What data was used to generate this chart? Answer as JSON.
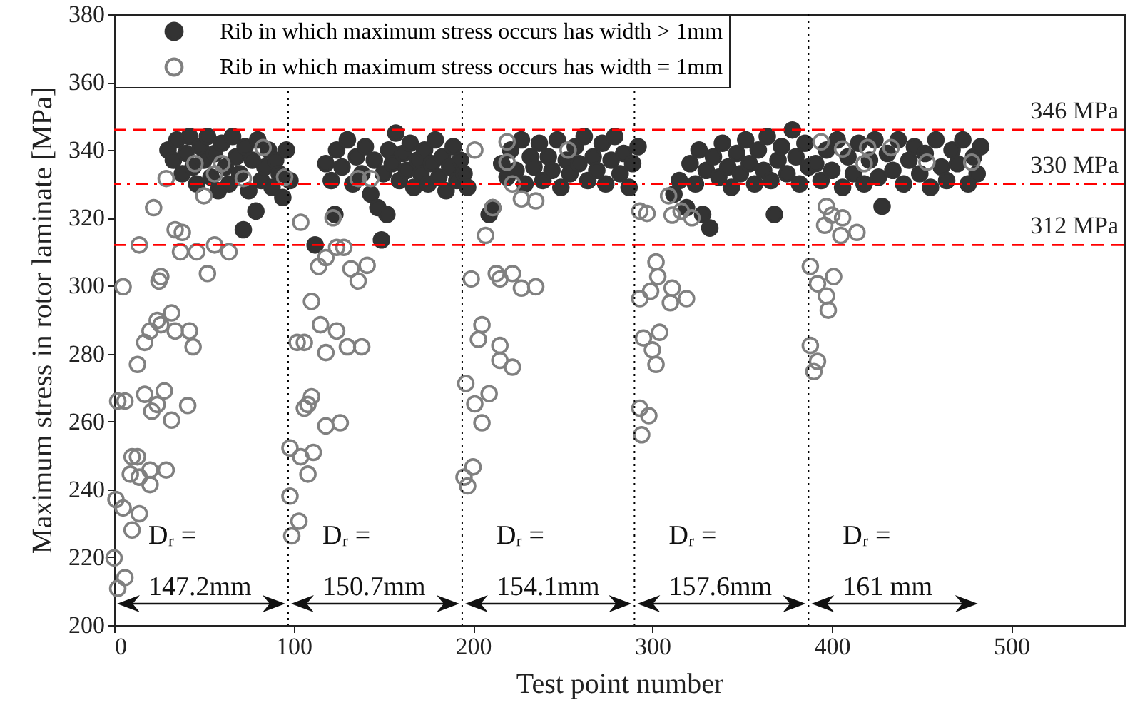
{
  "chart_data": {
    "type": "scatter",
    "xlabel": "Test point number",
    "ylabel": "Maximum stress in rotor laminate [MPa]",
    "xlim": [
      0,
      563
    ],
    "xticks": [
      0,
      100,
      200,
      300,
      400,
      500
    ],
    "ylim": [
      200,
      380
    ],
    "yticks": [
      200,
      220,
      240,
      260,
      280,
      300,
      320,
      340,
      360,
      380
    ],
    "grid": false,
    "legend": "top left",
    "marker": "circle",
    "series": [
      {
        "name": "Rib in which maximum stress occurs has width > 1mm",
        "color": "#333333",
        "x": [
          30,
          33,
          35,
          38,
          40,
          42,
          44,
          46,
          48,
          50,
          52,
          54,
          56,
          58,
          60,
          62,
          64,
          66,
          68,
          70,
          72,
          73,
          75,
          77,
          79,
          80,
          82,
          84,
          86,
          88,
          90,
          92,
          94,
          96,
          98,
          112,
          118,
          121,
          123,
          124,
          127,
          130,
          133,
          135,
          138,
          140,
          143,
          145,
          147,
          149,
          150,
          152,
          153,
          155,
          157,
          159,
          161,
          163,
          165,
          167,
          169,
          171,
          173,
          175,
          177,
          179,
          181,
          183,
          185,
          187,
          189,
          191,
          193,
          195,
          197,
          209,
          211,
          216,
          219,
          221,
          224,
          227,
          229,
          232,
          234,
          237,
          239,
          242,
          244,
          247,
          249,
          252,
          254,
          257,
          259,
          262,
          264,
          267,
          269,
          272,
          274,
          277,
          279,
          282,
          284,
          287,
          289,
          292,
          312,
          315,
          319,
          321,
          324,
          326,
          328,
          330,
          332,
          334,
          337,
          339,
          342,
          344,
          347,
          349,
          352,
          354,
          357,
          359,
          362,
          364,
          366,
          368,
          370,
          372,
          375,
          378,
          380,
          382,
          385,
          387,
          391,
          394,
          397,
          400,
          403,
          406,
          409,
          412,
          415,
          418,
          421,
          424,
          426,
          428,
          431,
          434,
          437,
          440,
          443,
          446,
          449,
          452,
          455,
          458,
          461,
          464,
          467,
          470,
          473,
          476,
          479,
          481,
          483
        ],
        "values": [
          340,
          337,
          343,
          333,
          339,
          344,
          335,
          330,
          341,
          337,
          344,
          332,
          339,
          328,
          342,
          335,
          330,
          344,
          338,
          333,
          316.5,
          341,
          328,
          337,
          322,
          343,
          331,
          335,
          340,
          329,
          337,
          333,
          326,
          340,
          331,
          312,
          336,
          331,
          321,
          340,
          335,
          343,
          330,
          338,
          333,
          341,
          327,
          337,
          323,
          313.5,
          333,
          321,
          340,
          336,
          345,
          331,
          339,
          334,
          342,
          329,
          337,
          333,
          340,
          330,
          336,
          343,
          332,
          338,
          328,
          335,
          341,
          331,
          337,
          333,
          329,
          321,
          323,
          336,
          332,
          340,
          334,
          343,
          330,
          338,
          335,
          342,
          331,
          338,
          334,
          343,
          329,
          337,
          333,
          341,
          336,
          344,
          331,
          338,
          334,
          342,
          330,
          337,
          344,
          333,
          339,
          329,
          336,
          341,
          327,
          331,
          323,
          336,
          330,
          340,
          321,
          334,
          317,
          338,
          332,
          342,
          335,
          329,
          339,
          333,
          343,
          336,
          330,
          340,
          334,
          344,
          331,
          321,
          337,
          341,
          333,
          345.9,
          338,
          330,
          342,
          335,
          336,
          331,
          340,
          334,
          343,
          329,
          338,
          333,
          342,
          330,
          337,
          343,
          332,
          323.4,
          339,
          334,
          343,
          330,
          337,
          341,
          333,
          339,
          329,
          343,
          335,
          331,
          340,
          336,
          343,
          330,
          338,
          333,
          341
        ]
      },
      {
        "name": "Rib in which maximum stress occurs has width = 1mm",
        "color": "#808080",
        "x": [
          5,
          14,
          22,
          29,
          34,
          38,
          37,
          46,
          56,
          64,
          52,
          25,
          26,
          50,
          56,
          45,
          60,
          83,
          72,
          95,
          32,
          24,
          20,
          17,
          26,
          34,
          42,
          44,
          13,
          2,
          6,
          17,
          28,
          21,
          32,
          41,
          24,
          10,
          13,
          9,
          20,
          29,
          20,
          14,
          1,
          5,
          14,
          10,
          0,
          6,
          2,
          104,
          122,
          136,
          143,
          114,
          118,
          124,
          128,
          132,
          136,
          141,
          110,
          115,
          124,
          102,
          106,
          118,
          130,
          138,
          110,
          106,
          108,
          118,
          126,
          98,
          104,
          111,
          108,
          98,
          103,
          99,
          201,
          219,
          219,
          253,
          222,
          227,
          235,
          211,
          207,
          199,
          213,
          215,
          222,
          227,
          235,
          205,
          203,
          215,
          215,
          222,
          196,
          209,
          201,
          205,
          200,
          195,
          197,
          297,
          293,
          309,
          311,
          316,
          322,
          302,
          303,
          299,
          311,
          310,
          319,
          293,
          295,
          304,
          300,
          302,
          293,
          298,
          294,
          394,
          406,
          420,
          418,
          433,
          453,
          478,
          397,
          400,
          406,
          396,
          405,
          414,
          388,
          401,
          392,
          397,
          398,
          388,
          392,
          390
        ],
        "values": [
          299.7,
          312,
          323,
          331.6,
          316.5,
          315.7,
          310,
          310,
          312,
          310,
          303.6,
          301.4,
          302.7,
          326.5,
          333,
          336,
          336,
          340.7,
          331.6,
          332,
          292,
          289.8,
          286.7,
          283.3,
          288.5,
          286.7,
          286.7,
          282,
          276.8,
          266,
          266,
          268,
          269,
          263,
          260.4,
          264.7,
          265,
          249.6,
          249.6,
          244.5,
          245.7,
          245.7,
          241.4,
          243.6,
          237,
          234.5,
          232.8,
          228,
          219.8,
          214,
          210.8,
          318.7,
          320,
          331.6,
          331.6,
          305.7,
          308.3,
          311.3,
          311.3,
          305,
          301.4,
          306,
          295.4,
          288.5,
          286.7,
          283.3,
          283.3,
          280.3,
          282,
          282,
          267.3,
          263.9,
          265,
          258.7,
          259.6,
          252.2,
          249.6,
          250.9,
          244.5,
          238,
          230.6,
          226.3,
          340,
          342.4,
          336.4,
          340,
          330,
          325.6,
          325,
          323,
          314.8,
          302,
          303.6,
          302,
          303.6,
          299.3,
          299.7,
          288.5,
          284.2,
          282.4,
          278,
          276,
          271.2,
          268.2,
          265.2,
          259.6,
          246.6,
          243.6,
          241,
          321.3,
          322,
          326.5,
          320.8,
          322,
          320,
          307,
          302.7,
          298.4,
          299.3,
          295,
          296.2,
          296.2,
          284.6,
          286.3,
          281.1,
          276.8,
          263.9,
          261.7,
          256.1,
          342.4,
          340.3,
          340.7,
          336,
          340.7,
          336.4,
          336.4,
          323.4,
          320.8,
          320,
          317.8,
          314.8,
          315.7,
          305.7,
          302.7,
          300.6,
          297,
          292.8,
          282.4,
          277.7,
          274.7
        ]
      }
    ],
    "ref_lines": [
      {
        "axis": "y",
        "value": 346,
        "label": "346 MPa",
        "color": "#ff0000",
        "line_style": "dashed"
      },
      {
        "axis": "y",
        "value": 330,
        "label": "330 MPa",
        "color": "#ff0000",
        "line_style": "dashdot"
      },
      {
        "axis": "y",
        "value": 312,
        "label": "312 MPa",
        "color": "#ff0000",
        "line_style": "dashed"
      },
      {
        "axis": "x",
        "value": 97,
        "color": "#000000",
        "line_style": "dotted"
      },
      {
        "axis": "x",
        "value": 194,
        "color": "#000000",
        "line_style": "dotted"
      },
      {
        "axis": "x",
        "value": 290,
        "color": "#000000",
        "line_style": "dotted"
      },
      {
        "axis": "x",
        "value": 387,
        "color": "#000000",
        "line_style": "dotted"
      }
    ],
    "annotations": [
      "Dᵣ =\n147.2mm",
      "Dᵣ =\n150.7mm",
      "Dᵣ =\n154.1mm",
      "Dᵣ =\n157.6mm",
      "Dᵣ =\n161 mm"
    ]
  }
}
